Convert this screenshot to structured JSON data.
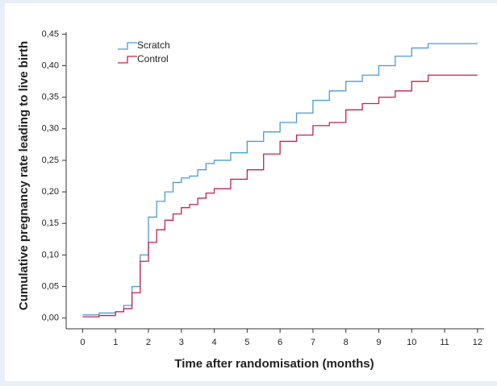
{
  "chart_data": {
    "type": "step",
    "xlabel": "Time after randomisation (months)",
    "ylabel": "Cumulative pregnancy rate leading to live birth",
    "x": [
      0,
      0.5,
      1,
      1.25,
      1.5,
      1.75,
      2,
      2.25,
      2.5,
      2.75,
      3,
      3.25,
      3.5,
      3.75,
      4,
      4.5,
      5,
      5.5,
      6,
      6.5,
      7,
      7.5,
      8,
      8.5,
      9,
      9.5,
      10,
      10.5,
      12
    ],
    "series": [
      {
        "name": "Scratch",
        "color": "#4a9ad6",
        "values": [
          0.005,
          0.008,
          0.01,
          0.02,
          0.05,
          0.1,
          0.16,
          0.185,
          0.2,
          0.215,
          0.222,
          0.225,
          0.235,
          0.245,
          0.25,
          0.262,
          0.28,
          0.295,
          0.31,
          0.325,
          0.345,
          0.36,
          0.375,
          0.385,
          0.4,
          0.415,
          0.428,
          0.435,
          0.435
        ]
      },
      {
        "name": "Control",
        "color": "#c1244c",
        "values": [
          0.002,
          0.004,
          0.01,
          0.015,
          0.04,
          0.09,
          0.12,
          0.14,
          0.155,
          0.165,
          0.175,
          0.18,
          0.19,
          0.198,
          0.205,
          0.22,
          0.235,
          0.26,
          0.28,
          0.29,
          0.305,
          0.31,
          0.33,
          0.34,
          0.35,
          0.36,
          0.375,
          0.385,
          0.385
        ]
      }
    ],
    "xlim": [
      -0.5,
      12.2
    ],
    "ylim": [
      -0.017,
      0.453
    ],
    "xticks": [
      0,
      1,
      2,
      3,
      4,
      5,
      6,
      7,
      8,
      9,
      10,
      11,
      12
    ],
    "yticks": [
      {
        "value": 0,
        "label": "0,00"
      },
      {
        "value": 0.05,
        "label": "0,05"
      },
      {
        "value": 0.1,
        "label": "0,10"
      },
      {
        "value": 0.15,
        "label": "0,15"
      },
      {
        "value": 0.2,
        "label": "0,20"
      },
      {
        "value": 0.25,
        "label": "0,25"
      },
      {
        "value": 0.3,
        "label": "0,30"
      },
      {
        "value": 0.35,
        "label": "0,35"
      },
      {
        "value": 0.4,
        "label": "0,40"
      },
      {
        "value": 0.45,
        "label": "0,45"
      }
    ],
    "legend": "upper left"
  }
}
